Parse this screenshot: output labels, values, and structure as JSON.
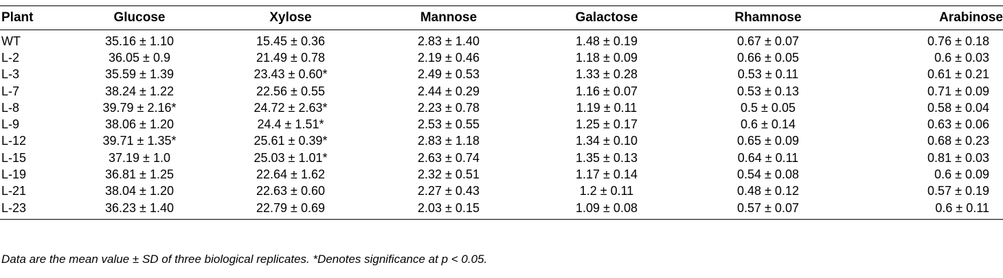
{
  "table": {
    "headers": [
      "Plant",
      "Glucose",
      "Xylose",
      "Mannose",
      "Galactose",
      "Rhamnose",
      "Arabinose"
    ],
    "rows": [
      [
        "WT",
        "35.16 ± 1.10",
        "15.45 ± 0.36",
        "2.83 ± 1.40",
        "1.48 ± 0.19",
        "0.67 ± 0.07",
        "0.76 ± 0.18"
      ],
      [
        "L-2",
        "36.05 ± 0.9",
        "21.49 ± 0.78",
        "2.19 ± 0.46",
        "1.18 ± 0.09",
        "0.66 ± 0.05",
        "0.6 ± 0.03"
      ],
      [
        "L-3",
        "35.59 ± 1.39",
        "23.43 ± 0.60*",
        "2.49 ± 0.53",
        "1.33 ± 0.28",
        "0.53 ± 0.11",
        "0.61 ± 0.21"
      ],
      [
        "L-7",
        "38.24 ± 1.22",
        "22.56 ± 0.55",
        "2.44 ± 0.29",
        "1.16 ± 0.07",
        "0.53 ± 0.13",
        "0.71 ± 0.09"
      ],
      [
        "L-8",
        "39.79 ± 2.16*",
        "24.72 ± 2.63*",
        "2.23 ± 0.78",
        "1.19 ± 0.11",
        "0.5 ± 0.05",
        "0.58 ± 0.04"
      ],
      [
        "L-9",
        "38.06 ± 1.20",
        "24.4 ± 1.51*",
        "2.53 ± 0.55",
        "1.25 ± 0.17",
        "0.6 ± 0.14",
        "0.63 ± 0.06"
      ],
      [
        "L-12",
        "39.71 ± 1.35*",
        "25.61 ± 0.39*",
        "2.83 ± 1.18",
        "1.34 ± 0.10",
        "0.65 ± 0.09",
        "0.68 ± 0.23"
      ],
      [
        "L-15",
        "37.19 ± 1.0",
        "25.03 ± 1.01*",
        "2.63 ± 0.74",
        "1.35 ± 0.13",
        "0.64 ± 0.11",
        "0.81 ± 0.03"
      ],
      [
        "L-19",
        "36.81 ± 1.25",
        "22.64 ± 1.62",
        "2.32 ± 0.51",
        "1.17 ± 0.14",
        "0.54 ± 0.08",
        "0.6 ± 0.09"
      ],
      [
        "L-21",
        "38.04 ± 1.20",
        "22.63 ± 0.60",
        "2.27 ± 0.43",
        "1.2 ± 0.11",
        "0.48 ± 0.12",
        "0.57 ± 0.19"
      ],
      [
        "L-23",
        "36.23 ± 1.40",
        "22.79 ± 0.69",
        "2.03 ± 0.15",
        "1.09 ± 0.08",
        "0.57 ± 0.07",
        "0.6 ± 0.11"
      ]
    ]
  },
  "footnote": "Data are the mean value ± SD of three biological replicates. *Denotes significance at p < 0.05."
}
